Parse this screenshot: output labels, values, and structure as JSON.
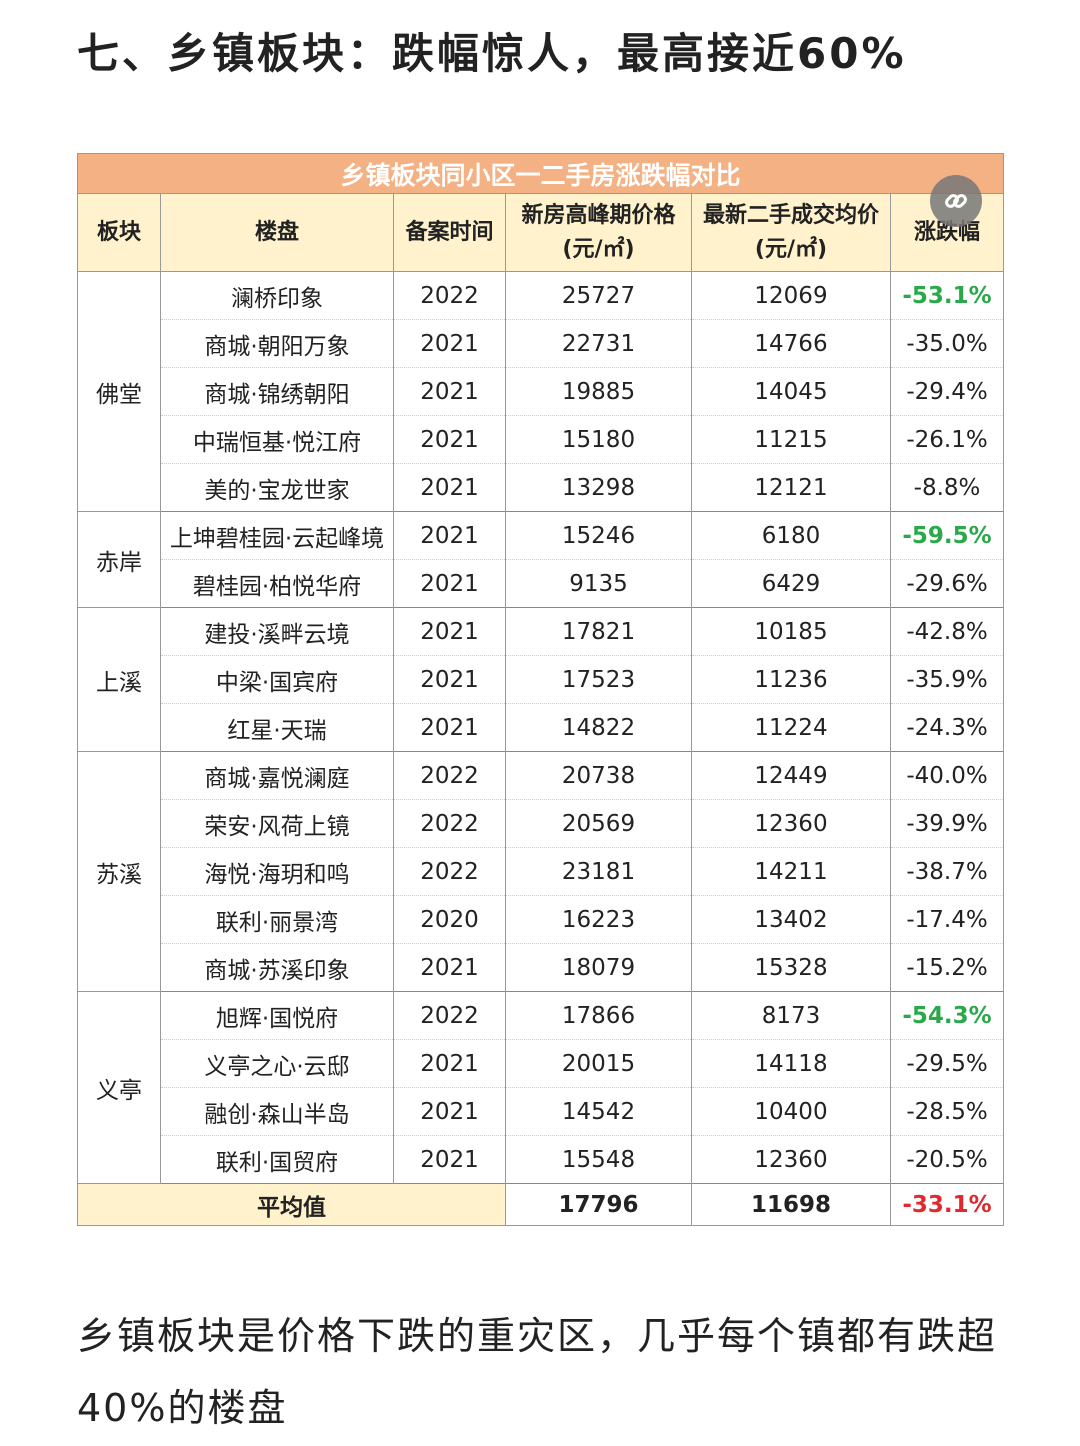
{
  "title": "七、乡镇板块：跌幅惊人，最高接近60%",
  "table": {
    "caption": "乡镇板块同小区一二手房涨跌幅对比",
    "headers": [
      [
        "板块"
      ],
      [
        "楼盘"
      ],
      [
        "备案时间"
      ],
      [
        "新房高峰期价格",
        "(元/㎡)"
      ],
      [
        "最新二手成交均价",
        "(元/㎡)"
      ],
      [
        "涨跌幅"
      ]
    ],
    "groups": [
      {
        "name": "佛堂",
        "rows": [
          {
            "project": "澜桥印象",
            "year": "2022",
            "new_price": "25727",
            "resale_price": "12069",
            "change": "-53.1%",
            "color": "#2aa84a"
          },
          {
            "project": "商城·朝阳万象",
            "year": "2021",
            "new_price": "22731",
            "resale_price": "14766",
            "change": "-35.0%"
          },
          {
            "project": "商城·锦绣朝阳",
            "year": "2021",
            "new_price": "19885",
            "resale_price": "14045",
            "change": "-29.4%"
          },
          {
            "project": "中瑞恒基·悦江府",
            "year": "2021",
            "new_price": "15180",
            "resale_price": "11215",
            "change": "-26.1%"
          },
          {
            "project": "美的·宝龙世家",
            "year": "2021",
            "new_price": "13298",
            "resale_price": "12121",
            "change": "-8.8%"
          }
        ]
      },
      {
        "name": "赤岸",
        "rows": [
          {
            "project": "上坤碧桂园·云起峰境",
            "year": "2021",
            "new_price": "15246",
            "resale_price": "6180",
            "change": "-59.5%",
            "color": "#2aa84a"
          },
          {
            "project": "碧桂园·柏悦华府",
            "year": "2021",
            "new_price": "9135",
            "resale_price": "6429",
            "change": "-29.6%"
          }
        ]
      },
      {
        "name": "上溪",
        "rows": [
          {
            "project": "建投·溪畔云境",
            "year": "2021",
            "new_price": "17821",
            "resale_price": "10185",
            "change": "-42.8%"
          },
          {
            "project": "中梁·国宾府",
            "year": "2021",
            "new_price": "17523",
            "resale_price": "11236",
            "change": "-35.9%"
          },
          {
            "project": "红星·天瑞",
            "year": "2021",
            "new_price": "14822",
            "resale_price": "11224",
            "change": "-24.3%"
          }
        ]
      },
      {
        "name": "苏溪",
        "rows": [
          {
            "project": "商城·嘉悦澜庭",
            "year": "2022",
            "new_price": "20738",
            "resale_price": "12449",
            "change": "-40.0%"
          },
          {
            "project": "荣安·风荷上镜",
            "year": "2022",
            "new_price": "20569",
            "resale_price": "12360",
            "change": "-39.9%"
          },
          {
            "project": "海悦·海玥和鸣",
            "year": "2022",
            "new_price": "23181",
            "resale_price": "14211",
            "change": "-38.7%"
          },
          {
            "project": "联利·丽景湾",
            "year": "2020",
            "new_price": "16223",
            "resale_price": "13402",
            "change": "-17.4%"
          },
          {
            "project": "商城·苏溪印象",
            "year": "2021",
            "new_price": "18079",
            "resale_price": "15328",
            "change": "-15.2%"
          }
        ]
      },
      {
        "name": "义亭",
        "rows": [
          {
            "project": "旭辉·国悦府",
            "year": "2022",
            "new_price": "17866",
            "resale_price": "8173",
            "change": "-54.3%",
            "color": "#2aa84a"
          },
          {
            "project": "义亭之心·云邸",
            "year": "2021",
            "new_price": "20015",
            "resale_price": "14118",
            "change": "-29.5%"
          },
          {
            "project": "融创·森山半岛",
            "year": "2021",
            "new_price": "14542",
            "resale_price": "10400",
            "change": "-28.5%"
          },
          {
            "project": "联利·国贸府",
            "year": "2021",
            "new_price": "15548",
            "resale_price": "12360",
            "change": "-20.5%"
          }
        ]
      }
    ],
    "footer": {
      "label": "平均值",
      "new_price": "17796",
      "resale_price": "11698",
      "change": "-33.1%",
      "color": "#e0282e"
    }
  },
  "paragraph": "乡镇板块是价格下跌的重灾区，几乎每个镇都有跌超40%的楼盘"
}
